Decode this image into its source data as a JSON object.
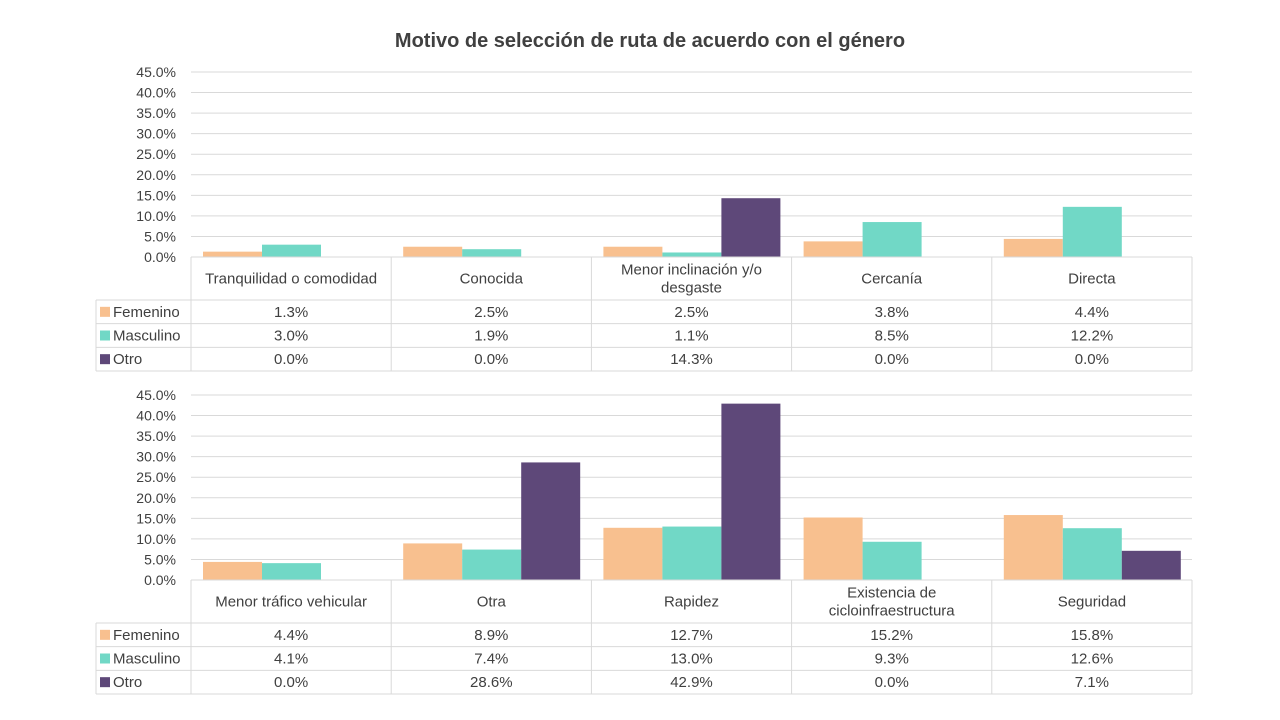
{
  "chart_data": {
    "type": "bar",
    "title": "Motivo de selección de ruta de acuerdo con el género",
    "ylim": [
      0,
      45
    ],
    "y_ticks": [
      "0.0%",
      "5.0%",
      "10.0%",
      "15.0%",
      "20.0%",
      "25.0%",
      "30.0%",
      "35.0%",
      "40.0%",
      "45.0%"
    ],
    "grid": true,
    "legend": "data-table",
    "colors": {
      "Femenino": "#F8C08F",
      "Masculino": "#71D8C6",
      "Otro": "#5E4879"
    },
    "panels": [
      {
        "categories": [
          [
            "Tranquilidad o comodidad"
          ],
          [
            "Conocida"
          ],
          [
            "Menor inclinación y/o",
            "desgaste"
          ],
          [
            "Cercanía"
          ],
          [
            "Directa"
          ]
        ],
        "series": [
          {
            "name": "Femenino",
            "values": [
              1.3,
              2.5,
              2.5,
              3.8,
              4.4
            ],
            "labels": [
              "1.3%",
              "2.5%",
              "2.5%",
              "3.8%",
              "4.4%"
            ]
          },
          {
            "name": "Masculino",
            "values": [
              3.0,
              1.9,
              1.1,
              8.5,
              12.2
            ],
            "labels": [
              "3.0%",
              "1.9%",
              "1.1%",
              "8.5%",
              "12.2%"
            ]
          },
          {
            "name": "Otro",
            "values": [
              0.0,
              0.0,
              14.3,
              0.0,
              0.0
            ],
            "labels": [
              "0.0%",
              "0.0%",
              "14.3%",
              "0.0%",
              "0.0%"
            ]
          }
        ]
      },
      {
        "categories": [
          [
            "Menor tráfico vehicular"
          ],
          [
            "Otra"
          ],
          [
            "Rapidez"
          ],
          [
            "Existencia de",
            "cicloinfraestructura"
          ],
          [
            "Seguridad"
          ]
        ],
        "series": [
          {
            "name": "Femenino",
            "values": [
              4.4,
              8.9,
              12.7,
              15.2,
              15.8
            ],
            "labels": [
              "4.4%",
              "8.9%",
              "12.7%",
              "15.2%",
              "15.8%"
            ]
          },
          {
            "name": "Masculino",
            "values": [
              4.1,
              7.4,
              13.0,
              9.3,
              12.6
            ],
            "labels": [
              "4.1%",
              "7.4%",
              "13.0%",
              "9.3%",
              "12.6%"
            ]
          },
          {
            "name": "Otro",
            "values": [
              0.0,
              28.6,
              42.9,
              0.0,
              7.1
            ],
            "labels": [
              "0.0%",
              "28.6%",
              "42.9%",
              "0.0%",
              "7.1%"
            ]
          }
        ]
      }
    ]
  }
}
